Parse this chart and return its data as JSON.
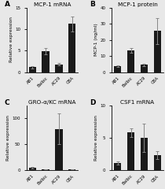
{
  "panels": [
    {
      "label": "A",
      "title": "MCP-1 mRNA",
      "ylabel": "Relative expression",
      "categories": [
        "AB1",
        "Balbic",
        "AC29",
        "CBA"
      ],
      "values": [
        1.1,
        4.8,
        1.8,
        11.2
      ],
      "errors": [
        0.2,
        0.7,
        0.3,
        1.8
      ],
      "ylim": [
        0,
        15
      ],
      "yticks": [
        0,
        5,
        10,
        15
      ]
    },
    {
      "label": "B",
      "title": "MCP-1 protein",
      "ylabel": "MCP-1 (ng/ml)",
      "categories": [
        "AB1",
        "Balbic",
        "AC29",
        "CBA"
      ],
      "values": [
        3.5,
        13.5,
        4.5,
        25.5
      ],
      "errors": [
        0.5,
        1.5,
        0.8,
        8.0
      ],
      "ylim": [
        0,
        40
      ],
      "yticks": [
        0,
        10,
        20,
        30,
        40
      ]
    },
    {
      "label": "C",
      "title": "GRO-α/KC mRNA",
      "ylabel": "Relative expression",
      "categories": [
        "AB1",
        "Balbic",
        "AC29",
        "CBA"
      ],
      "values": [
        4.0,
        1.5,
        80.0,
        1.5
      ],
      "errors": [
        1.5,
        0.5,
        30.0,
        0.5
      ],
      "ylim": [
        0,
        125
      ],
      "yticks": [
        0,
        50,
        100
      ]
    },
    {
      "label": "D",
      "title": "CSF1 mRNA",
      "ylabel": "Relative expression",
      "categories": [
        "AB1",
        "Balbic",
        "AC29",
        "CBA"
      ],
      "values": [
        1.1,
        5.8,
        5.0,
        2.3
      ],
      "errors": [
        0.25,
        0.7,
        2.2,
        0.6
      ],
      "ylim": [
        0,
        10
      ],
      "yticks": [
        0,
        5,
        10
      ]
    }
  ],
  "bar_color": "#1a1a1a",
  "bar_width": 0.55,
  "background_color": "#e8e8e8",
  "fontsize_title": 5.2,
  "fontsize_label": 4.2,
  "fontsize_tick": 4.0,
  "fontsize_panel_label": 6.5,
  "ecolor": "#888888",
  "elinewidth": 0.7,
  "capsize": 1.5
}
